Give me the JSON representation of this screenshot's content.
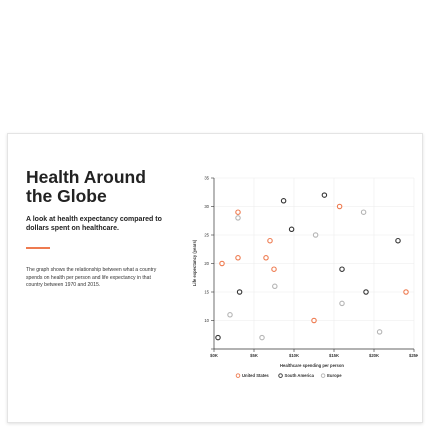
{
  "title": "Health Around the Globe",
  "subtitle": "A look at health expectancy compared to dollars spent on healthcare.",
  "description": "The graph shows the relationship between what a country spends on health per person and life expectancy in that country between 1970 and 2015.",
  "colors": {
    "accent": "#ee7b50",
    "united_states": "#ee7b50",
    "south_america": "#333333",
    "europe": "#b5b5b5"
  },
  "chart_data": {
    "type": "scatter",
    "title": "",
    "xlabel": "Healthcare spending per person",
    "ylabel": "Life expectancy (years)",
    "xlim": [
      0,
      25000
    ],
    "ylim": [
      5,
      35
    ],
    "xticks": [
      0,
      5000,
      10000,
      15000,
      20000,
      25000
    ],
    "xtick_labels": [
      "$0K",
      "$5K",
      "$10K",
      "$15K",
      "$20K",
      "$25K"
    ],
    "yticks": [
      5,
      10,
      15,
      20,
      25,
      30,
      35
    ],
    "ytick_labels": [
      "",
      "10",
      "15",
      "20",
      "25",
      "30",
      "35"
    ],
    "grid": true,
    "legend_position": "bottom",
    "series": [
      {
        "name": "United States",
        "color": "#ee7b50",
        "points": [
          [
            1000,
            20
          ],
          [
            3000,
            29
          ],
          [
            3000,
            21
          ],
          [
            6500,
            21
          ],
          [
            7000,
            24
          ],
          [
            7500,
            19
          ],
          [
            12500,
            10
          ],
          [
            15700,
            30
          ],
          [
            24000,
            15
          ]
        ]
      },
      {
        "name": "South America",
        "color": "#333333",
        "points": [
          [
            500,
            7
          ],
          [
            3200,
            15
          ],
          [
            8700,
            31
          ],
          [
            9700,
            26
          ],
          [
            13800,
            32
          ],
          [
            16000,
            19
          ],
          [
            19000,
            15
          ],
          [
            23000,
            24
          ]
        ]
      },
      {
        "name": "Europe",
        "color": "#b5b5b5",
        "points": [
          [
            3000,
            28
          ],
          [
            2000,
            11
          ],
          [
            6000,
            7
          ],
          [
            7600,
            16
          ],
          [
            12700,
            25
          ],
          [
            16000,
            13
          ],
          [
            18700,
            29
          ],
          [
            20700,
            8
          ]
        ]
      }
    ]
  }
}
